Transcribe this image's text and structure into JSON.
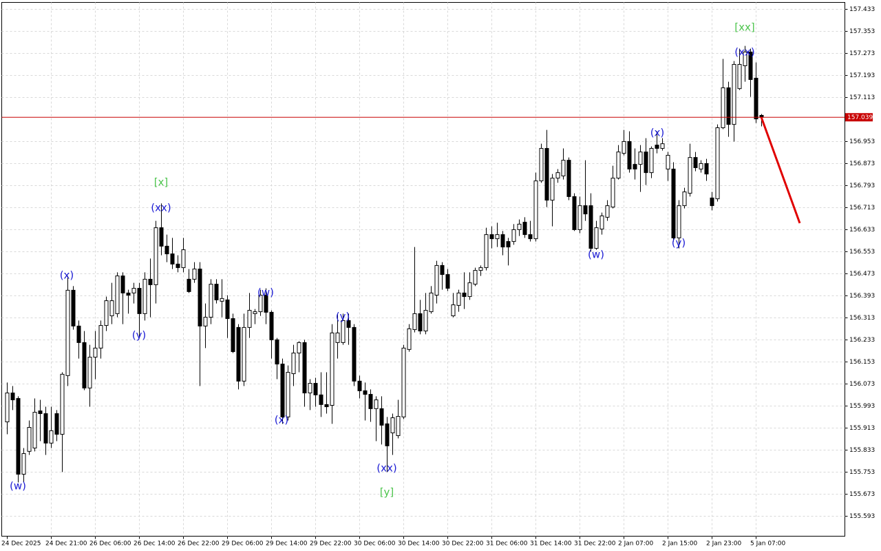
{
  "chart_data": {
    "type": "candlestick",
    "ylim": [
      155.518,
      157.456
    ],
    "yticks": [
      157.433,
      157.353,
      157.273,
      157.193,
      157.113,
      156.953,
      156.873,
      156.793,
      156.713,
      156.633,
      156.553,
      156.473,
      156.393,
      156.313,
      156.233,
      156.153,
      156.073,
      155.993,
      155.913,
      155.833,
      155.753,
      155.673,
      155.593
    ],
    "grid": true,
    "up_color": "#ffffff",
    "down_color": "#000000",
    "outline_color": "#000000",
    "current_price": 157.039,
    "current_price_color": "#c80000",
    "categories": [
      "24 Dec 2025",
      null,
      null,
      null,
      null,
      null,
      null,
      null,
      "24 Dec 21:00",
      null,
      null,
      null,
      null,
      null,
      null,
      null,
      "26 Dec 06:00",
      null,
      null,
      null,
      null,
      null,
      null,
      null,
      "26 Dec 14:00",
      null,
      null,
      null,
      null,
      null,
      null,
      null,
      "26 Dec 22:00",
      null,
      null,
      null,
      null,
      null,
      null,
      null,
      "29 Dec 06:00",
      null,
      null,
      null,
      null,
      null,
      null,
      null,
      "29 Dec 14:00",
      null,
      null,
      null,
      null,
      null,
      null,
      null,
      "29 Dec 22:00",
      null,
      null,
      null,
      null,
      null,
      null,
      null,
      "30 Dec 06:00",
      null,
      null,
      null,
      null,
      null,
      null,
      null,
      "30 Dec 14:00",
      null,
      null,
      null,
      null,
      null,
      null,
      null,
      "30 Dec 22:00",
      null,
      null,
      null,
      null,
      null,
      null,
      null,
      "31 Dec 06:00",
      null,
      null,
      null,
      null,
      null,
      null,
      null,
      "31 Dec 14:00",
      null,
      null,
      null,
      null,
      null,
      null,
      null,
      "31 Dec 22:00",
      null,
      null,
      null,
      null,
      null,
      null,
      null,
      "2 Jan 07:00",
      null,
      null,
      null,
      null,
      null,
      null,
      null,
      "2 Jan 15:00",
      null,
      null,
      null,
      null,
      null,
      null,
      null,
      "2 Jan 23:00",
      null,
      null,
      null,
      null,
      null,
      null,
      null,
      "5 Jan 07:00",
      null
    ],
    "ohlc": [
      [
        155.933,
        156.076,
        155.888,
        156.038
      ],
      [
        156.038,
        156.063,
        155.976,
        156.013
      ],
      [
        156.018,
        156.026,
        155.713,
        155.743
      ],
      [
        155.743,
        155.838,
        155.713,
        155.818
      ],
      [
        155.826,
        155.938,
        155.813,
        155.913
      ],
      [
        155.838,
        156.018,
        155.826,
        155.968
      ],
      [
        155.973,
        156.013,
        155.863,
        155.963
      ],
      [
        155.963,
        155.988,
        155.813,
        155.856
      ],
      [
        155.856,
        155.988,
        155.838,
        155.901
      ],
      [
        155.963,
        155.976,
        155.863,
        155.888
      ],
      [
        155.888,
        156.113,
        155.751,
        156.106
      ],
      [
        156.101,
        156.463,
        156.063,
        156.411
      ],
      [
        156.411,
        156.426,
        156.268,
        156.281
      ],
      [
        156.281,
        156.301,
        156.163,
        156.221
      ],
      [
        156.221,
        156.263,
        156.048,
        156.056
      ],
      [
        156.056,
        156.213,
        155.988,
        156.168
      ],
      [
        156.168,
        156.263,
        156.088,
        156.201
      ],
      [
        156.201,
        156.301,
        156.163,
        156.283
      ],
      [
        156.283,
        156.388,
        156.263,
        156.373
      ],
      [
        156.318,
        156.438,
        156.288,
        156.373
      ],
      [
        156.326,
        156.476,
        156.313,
        156.463
      ],
      [
        156.463,
        156.476,
        156.288,
        156.401
      ],
      [
        156.401,
        156.413,
        156.326,
        156.393
      ],
      [
        156.401,
        156.438,
        156.363,
        156.418
      ],
      [
        156.418,
        156.438,
        156.238,
        156.326
      ],
      [
        156.326,
        156.476,
        156.301,
        156.451
      ],
      [
        156.451,
        156.526,
        156.313,
        156.431
      ],
      [
        156.431,
        156.663,
        156.363,
        156.638
      ],
      [
        156.638,
        156.726,
        156.538,
        156.571
      ],
      [
        156.571,
        156.613,
        156.513,
        156.543
      ],
      [
        156.543,
        156.601,
        156.488,
        156.506
      ],
      [
        156.506,
        156.538,
        156.476,
        156.493
      ],
      [
        156.493,
        156.601,
        156.476,
        156.558
      ],
      [
        156.451,
        156.488,
        156.401,
        156.406
      ],
      [
        156.451,
        156.513,
        156.438,
        156.488
      ],
      [
        156.488,
        156.513,
        156.063,
        156.281
      ],
      [
        156.281,
        156.363,
        156.201,
        156.313
      ],
      [
        156.313,
        156.451,
        156.288,
        156.433
      ],
      [
        156.433,
        156.451,
        156.363,
        156.376
      ],
      [
        156.371,
        156.451,
        156.313,
        156.381
      ],
      [
        156.376,
        156.393,
        156.238,
        156.308
      ],
      [
        156.308,
        156.326,
        156.183,
        156.188
      ],
      [
        156.276,
        156.288,
        156.051,
        156.081
      ],
      [
        156.081,
        156.326,
        156.063,
        156.276
      ],
      [
        156.276,
        156.401,
        156.238,
        156.338
      ],
      [
        156.326,
        156.343,
        156.288,
        156.333
      ],
      [
        156.333,
        156.413,
        156.318,
        156.393
      ],
      [
        156.393,
        156.418,
        156.288,
        156.331
      ],
      [
        156.331,
        156.338,
        156.163,
        156.231
      ],
      [
        156.231,
        156.238,
        156.088,
        156.143
      ],
      [
        156.143,
        156.163,
        155.926,
        155.951
      ],
      [
        155.951,
        156.138,
        155.938,
        156.113
      ],
      [
        156.108,
        156.213,
        156.063,
        156.183
      ],
      [
        156.183,
        156.226,
        156.113,
        156.221
      ],
      [
        156.221,
        156.231,
        155.988,
        156.038
      ],
      [
        156.038,
        156.088,
        155.976,
        156.073
      ],
      [
        156.073,
        156.093,
        155.988,
        156.031
      ],
      [
        156.031,
        156.113,
        155.951,
        155.996
      ],
      [
        155.996,
        156.113,
        155.963,
        155.988
      ],
      [
        155.993,
        156.288,
        155.926,
        156.256
      ],
      [
        156.221,
        156.326,
        156.163,
        156.256
      ],
      [
        156.221,
        156.326,
        156.213,
        156.301
      ],
      [
        156.301,
        156.326,
        156.213,
        156.276
      ],
      [
        156.276,
        156.288,
        156.063,
        156.081
      ],
      [
        156.081,
        156.101,
        156.018,
        156.046
      ],
      [
        156.046,
        156.076,
        155.938,
        156.033
      ],
      [
        156.033,
        156.051,
        155.933,
        155.981
      ],
      [
        155.981,
        156.026,
        155.863,
        156.013
      ],
      [
        155.981,
        156.026,
        155.851,
        155.921
      ],
      [
        155.926,
        155.951,
        155.751,
        155.846
      ],
      [
        155.893,
        155.963,
        155.813,
        155.948
      ],
      [
        155.883,
        156.013,
        155.873,
        155.953
      ],
      [
        155.951,
        156.213,
        155.943,
        156.201
      ],
      [
        156.196,
        156.288,
        156.188,
        156.271
      ],
      [
        156.268,
        156.568,
        156.258,
        156.326
      ],
      [
        156.326,
        156.376,
        156.251,
        156.263
      ],
      [
        156.263,
        156.401,
        156.251,
        156.338
      ],
      [
        156.333,
        156.426,
        156.326,
        156.401
      ],
      [
        156.393,
        156.518,
        156.363,
        156.501
      ],
      [
        156.501,
        156.513,
        156.413,
        156.468
      ],
      [
        156.468,
        156.488,
        156.408,
        156.418
      ],
      [
        156.318,
        156.401,
        156.313,
        156.358
      ],
      [
        156.356,
        156.413,
        156.333,
        156.401
      ],
      [
        156.401,
        156.476,
        156.343,
        156.388
      ],
      [
        156.388,
        156.476,
        156.376,
        156.438
      ],
      [
        156.433,
        156.493,
        156.426,
        156.483
      ],
      [
        156.483,
        156.501,
        156.463,
        156.493
      ],
      [
        156.493,
        156.638,
        156.483,
        156.613
      ],
      [
        156.613,
        156.643,
        156.563,
        156.598
      ],
      [
        156.598,
        156.656,
        156.568,
        156.613
      ],
      [
        156.613,
        156.626,
        156.538,
        156.568
      ],
      [
        156.588,
        156.601,
        156.501,
        156.568
      ],
      [
        156.588,
        156.651,
        156.576,
        156.631
      ],
      [
        156.631,
        156.668,
        156.608,
        156.651
      ],
      [
        156.658,
        156.676,
        156.601,
        156.613
      ],
      [
        156.613,
        156.663,
        156.588,
        156.598
      ],
      [
        156.598,
        156.838,
        156.588,
        156.808
      ],
      [
        156.808,
        156.943,
        156.801,
        156.926
      ],
      [
        156.926,
        156.993,
        156.713,
        156.738
      ],
      [
        156.738,
        156.833,
        156.643,
        156.818
      ],
      [
        156.818,
        156.851,
        156.801,
        156.838
      ],
      [
        156.826,
        156.926,
        156.813,
        156.883
      ],
      [
        156.883,
        156.893,
        156.738,
        156.751
      ],
      [
        156.751,
        156.763,
        156.626,
        156.631
      ],
      [
        156.631,
        156.751,
        156.618,
        156.718
      ],
      [
        156.718,
        156.883,
        156.663,
        156.688
      ],
      [
        156.718,
        156.763,
        156.551,
        156.563
      ],
      [
        156.563,
        156.663,
        156.558,
        156.638
      ],
      [
        156.633,
        156.693,
        156.613,
        156.681
      ],
      [
        156.676,
        156.738,
        156.663,
        156.718
      ],
      [
        156.713,
        156.863,
        156.708,
        156.818
      ],
      [
        156.818,
        156.938,
        156.813,
        156.913
      ],
      [
        156.908,
        156.993,
        156.901,
        156.951
      ],
      [
        156.951,
        156.988,
        156.838,
        156.851
      ],
      [
        156.868,
        156.926,
        156.813,
        156.851
      ],
      [
        156.868,
        156.938,
        156.768,
        156.913
      ],
      [
        156.913,
        156.963,
        156.793,
        156.838
      ],
      [
        156.838,
        156.933,
        156.818,
        156.926
      ],
      [
        156.938,
        156.988,
        156.908,
        156.926
      ],
      [
        156.926,
        156.963,
        156.918,
        156.943
      ],
      [
        156.851,
        156.913,
        156.808,
        156.901
      ],
      [
        156.851,
        156.876,
        156.588,
        156.601
      ],
      [
        156.601,
        156.738,
        156.563,
        156.718
      ],
      [
        156.718,
        156.783,
        156.708,
        156.768
      ],
      [
        156.763,
        156.943,
        156.751,
        156.893
      ],
      [
        156.893,
        156.913,
        156.843,
        156.856
      ],
      [
        156.851,
        156.883,
        156.838,
        156.871
      ],
      [
        156.871,
        156.888,
        156.808,
        156.833
      ],
      [
        156.746,
        156.768,
        156.701,
        156.718
      ],
      [
        156.743,
        157.013,
        156.733,
        157.001
      ],
      [
        157.001,
        157.251,
        156.996,
        157.146
      ],
      [
        157.146,
        157.168,
        156.968,
        157.013
      ],
      [
        157.013,
        157.243,
        156.951,
        157.231
      ],
      [
        157.143,
        157.288,
        157.138,
        157.231
      ],
      [
        157.226,
        157.298,
        157.168,
        157.276
      ],
      [
        157.276,
        157.288,
        157.113,
        157.176
      ],
      [
        157.181,
        157.238,
        157.018,
        157.033
      ],
      [
        157.046,
        157.051,
        157.006,
        157.039
      ]
    ],
    "annotations": [
      {
        "text": "(w)",
        "color": "#1c1cd4"
      },
      {
        "text": "(x)",
        "color": "#1c1cd4"
      },
      {
        "text": "(y)",
        "color": "#1c1cd4"
      },
      {
        "text": "(xx)",
        "color": "#1c1cd4"
      },
      {
        "text": "[x]",
        "color": "#4cc44c"
      },
      {
        "text": "(w)",
        "color": "#1c1cd4"
      },
      {
        "text": "(x)",
        "color": "#1c1cd4"
      },
      {
        "text": "(y)",
        "color": "#1c1cd4"
      },
      {
        "text": "(xx)",
        "color": "#1c1cd4"
      },
      {
        "text": "[y]",
        "color": "#4cc44c"
      },
      {
        "text": "(w)",
        "color": "#1c1cd4"
      },
      {
        "text": "(x)",
        "color": "#1c1cd4"
      },
      {
        "text": "(y)",
        "color": "#1c1cd4"
      },
      {
        "text": "(xx)",
        "color": "#1c1cd4"
      },
      {
        "text": "[xx]",
        "color": "#4cc44c"
      }
    ]
  }
}
